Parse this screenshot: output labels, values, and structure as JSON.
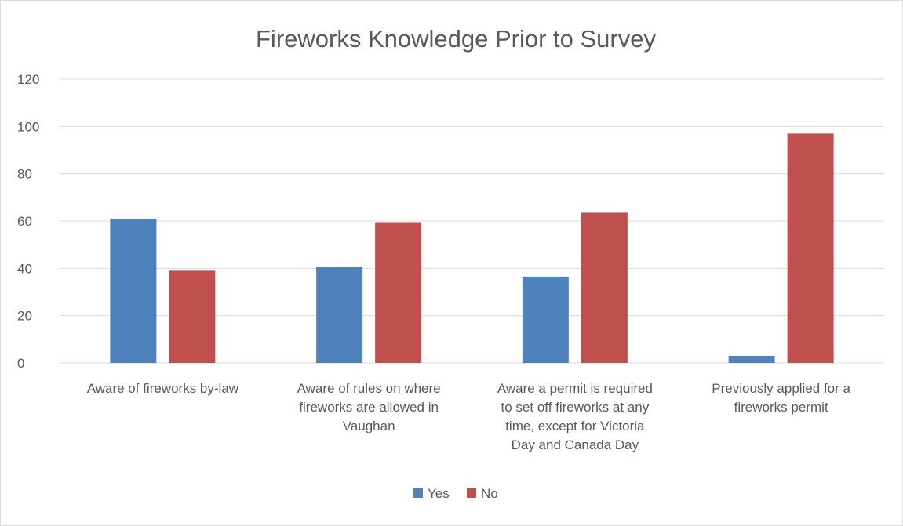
{
  "chart_data": {
    "type": "bar",
    "title": "Fireworks Knowledge Prior to Survey",
    "xlabel": "",
    "ylabel": "",
    "ylim": [
      0,
      120
    ],
    "yticks": [
      0,
      20,
      40,
      60,
      80,
      100,
      120
    ],
    "grid": true,
    "legend_position": "bottom",
    "categories": [
      "Aware of fireworks by-law",
      "Aware of  rules on where fireworks are allowed in Vaughan",
      "Aware a permit is required to set off fireworks at any time, except for Victoria Day and Canada Day",
      "Previously applied for a fireworks permit"
    ],
    "category_lines": [
      [
        "Aware of fireworks by-law"
      ],
      [
        "Aware of  rules on where",
        "fireworks are allowed in",
        "Vaughan"
      ],
      [
        "Aware a permit is required",
        "to set off fireworks at any",
        "time, except for Victoria",
        "Day and Canada Day"
      ],
      [
        "Previously applied for a",
        "fireworks permit"
      ]
    ],
    "series": [
      {
        "name": "Yes",
        "color": "#4f81bd",
        "values": [
          61,
          40.5,
          36.5,
          3
        ]
      },
      {
        "name": "No",
        "color": "#c0504d",
        "values": [
          39,
          59.5,
          63.5,
          97
        ]
      }
    ]
  }
}
